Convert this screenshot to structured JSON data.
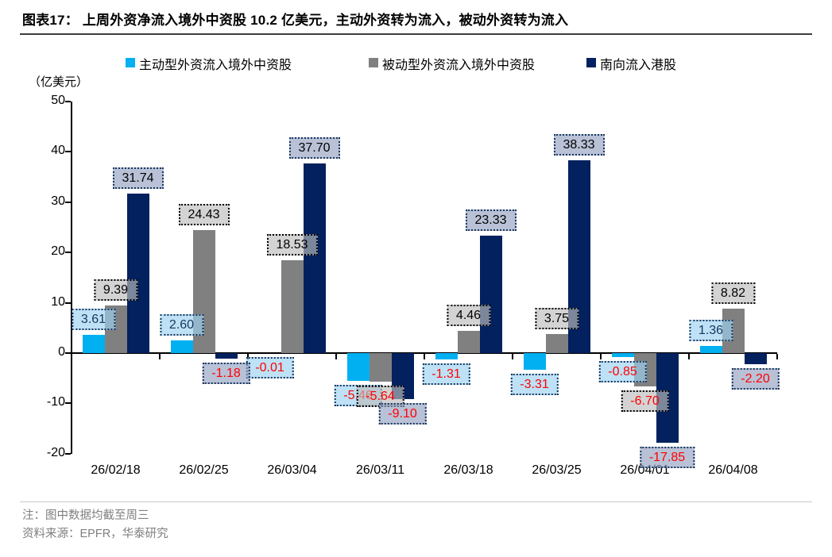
{
  "figure": {
    "title": "图表17：  上周外资净流入境外中资股 10.2 亿美元，主动外资转为流入，被动外资转为流入",
    "note": "注：图中数据均截至周三",
    "source": "资料来源：EPFR，华泰研究"
  },
  "chart_data": {
    "type": "bar",
    "unit_label": "（亿美元）",
    "categories": [
      "26/02/18",
      "26/02/25",
      "26/03/04",
      "26/03/11",
      "26/03/18",
      "26/03/25",
      "26/04/01",
      "26/04/08"
    ],
    "series": [
      {
        "name": "主动型外资流入境外中资股",
        "color": "#00B0F0",
        "values": [
          3.61,
          2.6,
          -0.01,
          -5.46,
          -1.31,
          -3.31,
          -0.85,
          1.36
        ]
      },
      {
        "name": "被动型外资流入境外中资股",
        "color": "#808080",
        "values": [
          9.39,
          24.43,
          18.53,
          -5.64,
          4.46,
          3.75,
          -6.7,
          8.82
        ]
      },
      {
        "name": "南向流入港股",
        "color": "#02215E",
        "values": [
          31.74,
          -1.18,
          37.7,
          -9.1,
          23.33,
          38.33,
          -17.85,
          -2.2
        ]
      }
    ],
    "value_label_styles": [
      {
        "bg": "rgba(157,210,240,0.66)",
        "border": "#17375E",
        "pos_text": "#17375E"
      },
      {
        "bg": "rgba(188,188,188,0.66)",
        "border": "#000000",
        "pos_text": "#000000"
      },
      {
        "bg": "rgba(149,161,193,0.66)",
        "border": "#17375E",
        "pos_text": "#000000"
      }
    ],
    "negative_text_color": "#FF0000",
    "yticks": [
      50,
      40,
      30,
      20,
      10,
      0,
      -10,
      -20
    ],
    "ylim": [
      -20,
      50
    ],
    "grid": false,
    "legend_position": "top"
  }
}
